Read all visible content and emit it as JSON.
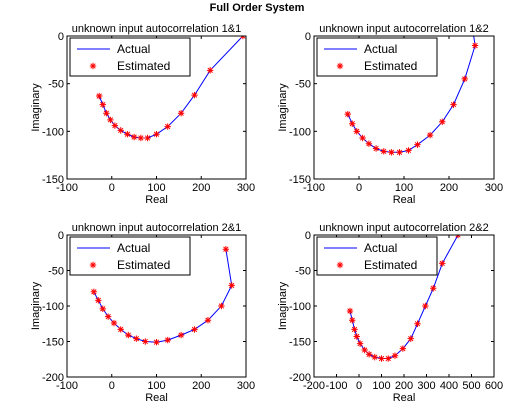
{
  "figure_title": "Full Order System",
  "colors": {
    "actual": "#0000ff",
    "estimated": "#ff0000",
    "axes": "#000000"
  },
  "chart_data": [
    {
      "type": "line",
      "title": "unknown input autocorrelation 1&1",
      "xlabel": "Real",
      "ylabel": "Imaginary",
      "xlim": [
        -100,
        300
      ],
      "ylim": [
        -150,
        0
      ],
      "xticks": [
        "-100",
        "0",
        "100",
        "200",
        "300"
      ],
      "yticks": [
        "-150",
        "-100",
        "-50",
        "0"
      ],
      "legend": {
        "placement": "top-left",
        "entries": [
          "Actual",
          "Estimated"
        ]
      },
      "series": [
        {
          "name": "Actual",
          "style": "line",
          "x": [
            -28,
            -20,
            -12,
            -3,
            7,
            20,
            35,
            50,
            65,
            80,
            100,
            125,
            155,
            185,
            220,
            293
          ],
          "y": [
            -63,
            -72,
            -81,
            -88,
            -94,
            -99,
            -103,
            -106,
            -107,
            -107,
            -103,
            -95,
            -81,
            -62,
            -36,
            0
          ]
        },
        {
          "name": "Estimated",
          "style": "marker",
          "x": [
            -28,
            -20,
            -12,
            -3,
            7,
            20,
            35,
            50,
            65,
            80,
            100,
            125,
            155,
            185,
            220,
            293
          ],
          "y": [
            -63,
            -72,
            -81,
            -88,
            -94,
            -99,
            -103,
            -106,
            -107,
            -107,
            -103,
            -95,
            -81,
            -62,
            -36,
            0
          ]
        }
      ]
    },
    {
      "type": "line",
      "title": "unknown input autocorrelation 1&2",
      "xlabel": "Real",
      "ylabel": "Imaginary",
      "xlim": [
        -100,
        300
      ],
      "ylim": [
        -150,
        0
      ],
      "xticks": [
        "-100",
        "0",
        "100",
        "200",
        "300"
      ],
      "yticks": [
        "-150",
        "-100",
        "-50",
        "0"
      ],
      "legend": {
        "placement": "top-left",
        "entries": [
          "Actual",
          "Estimated"
        ]
      },
      "series": [
        {
          "name": "Actual",
          "style": "line",
          "x": [
            -25,
            -15,
            -5,
            8,
            22,
            38,
            55,
            72,
            90,
            110,
            130,
            158,
            185,
            210,
            235,
            258,
            250
          ],
          "y": [
            -82,
            -92,
            -100,
            -107,
            -113,
            -118,
            -121,
            -122,
            -122,
            -120,
            -114,
            -104,
            -90,
            -72,
            -45,
            -10,
            15
          ]
        },
        {
          "name": "Estimated",
          "style": "marker",
          "x": [
            -25,
            -15,
            -5,
            8,
            22,
            38,
            55,
            72,
            90,
            110,
            130,
            158,
            185,
            210,
            235,
            258,
            250
          ],
          "y": [
            -82,
            -92,
            -100,
            -107,
            -113,
            -118,
            -121,
            -122,
            -122,
            -120,
            -114,
            -104,
            -90,
            -72,
            -45,
            -10,
            15
          ]
        }
      ]
    },
    {
      "type": "line",
      "title": "unknown input autocorrelation 2&1",
      "xlabel": "Real",
      "ylabel": "Imaginary",
      "xlim": [
        -100,
        300
      ],
      "ylim": [
        -200,
        0
      ],
      "xticks": [
        "-100",
        "0",
        "100",
        "200",
        "300"
      ],
      "yticks": [
        "-200",
        "-150",
        "-100",
        "-50",
        "0"
      ],
      "legend": {
        "placement": "top-left",
        "entries": [
          "Actual",
          "Estimated"
        ]
      },
      "series": [
        {
          "name": "Actual",
          "style": "line",
          "x": [
            -40,
            -30,
            -20,
            -8,
            5,
            20,
            37,
            55,
            75,
            100,
            125,
            155,
            185,
            215,
            245,
            268,
            255
          ],
          "y": [
            -80,
            -92,
            -104,
            -115,
            -124,
            -133,
            -141,
            -146,
            -150,
            -151,
            -148,
            -141,
            -133,
            -120,
            -100,
            -71,
            -20
          ]
        },
        {
          "name": "Estimated",
          "style": "marker",
          "x": [
            -40,
            -30,
            -20,
            -8,
            5,
            20,
            37,
            55,
            75,
            100,
            125,
            155,
            185,
            215,
            245,
            268,
            255
          ],
          "y": [
            -80,
            -92,
            -104,
            -115,
            -124,
            -133,
            -141,
            -146,
            -150,
            -151,
            -148,
            -141,
            -133,
            -120,
            -100,
            -71,
            -20
          ]
        }
      ]
    },
    {
      "type": "line",
      "title": "unknown input autocorrelation 2&2",
      "xlabel": "Real",
      "ylabel": "Imaginary",
      "xlim": [
        -200,
        600
      ],
      "ylim": [
        -200,
        0
      ],
      "xticks": [
        "-200",
        "-100",
        "0",
        "100",
        "200",
        "300",
        "400",
        "500",
        "600"
      ],
      "yticks": [
        "-200",
        "-150",
        "-100",
        "-50",
        "0"
      ],
      "legend": {
        "placement": "top-left",
        "entries": [
          "Actual",
          "Estimated"
        ]
      },
      "series": [
        {
          "name": "Actual",
          "style": "line",
          "x": [
            -40,
            -30,
            -20,
            -10,
            5,
            25,
            45,
            70,
            100,
            130,
            160,
            195,
            230,
            260,
            295,
            330,
            370,
            440
          ],
          "y": [
            -107,
            -120,
            -133,
            -143,
            -153,
            -162,
            -168,
            -172,
            -174,
            -174,
            -170,
            -160,
            -146,
            -125,
            -100,
            -75,
            -40,
            0
          ]
        },
        {
          "name": "Estimated",
          "style": "marker",
          "x": [
            -40,
            -30,
            -20,
            -10,
            5,
            25,
            45,
            70,
            100,
            130,
            160,
            195,
            230,
            260,
            295,
            330,
            370,
            440
          ],
          "y": [
            -107,
            -120,
            -133,
            -143,
            -153,
            -162,
            -168,
            -172,
            -174,
            -174,
            -170,
            -160,
            -146,
            -125,
            -100,
            -75,
            -40,
            0
          ]
        }
      ]
    }
  ]
}
